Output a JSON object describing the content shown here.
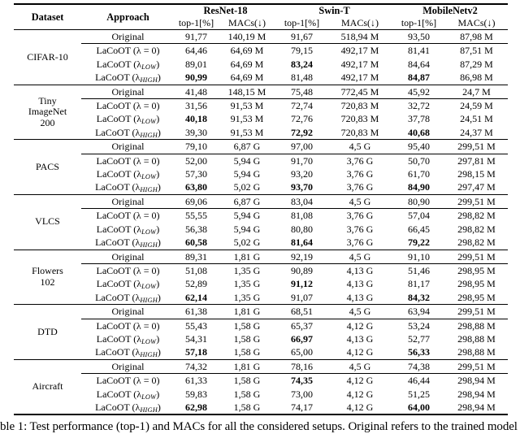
{
  "table": {
    "header": {
      "dataset": "Dataset",
      "approach": "Approach",
      "models": [
        "ResNet-18",
        "Swin-T",
        "MobileNetv2"
      ],
      "metric_top1": "top-1[%]",
      "metric_macs": "MACs(↓)"
    },
    "groups": [
      {
        "dataset_lines": [
          "CIFAR-10"
        ],
        "rows": [
          {
            "approach": {
              "label": "Original",
              "sub": "",
              "end": ""
            },
            "values": [
              {
                "v": "91,77"
              },
              {
                "v": "140,19 M"
              },
              {
                "v": "91,67"
              },
              {
                "v": "518,94 M"
              },
              {
                "v": "93,50"
              },
              {
                "v": "87,98 M"
              }
            ]
          },
          {
            "approach": {
              "label": "LaCoOT (λ = 0)",
              "sub": "",
              "end": ""
            },
            "values": [
              {
                "v": "64,46"
              },
              {
                "v": "64,69 M"
              },
              {
                "v": "79,15"
              },
              {
                "v": "492,17 M"
              },
              {
                "v": "81,41"
              },
              {
                "v": "87,51 M"
              }
            ]
          },
          {
            "approach": {
              "label": "LaCoOT (λ",
              "sub": "LOW",
              "end": ")"
            },
            "values": [
              {
                "v": "89,01"
              },
              {
                "v": "64,69 M"
              },
              {
                "v": "83,24",
                "b": true
              },
              {
                "v": "492,17 M"
              },
              {
                "v": "84,64"
              },
              {
                "v": "87,29 M"
              }
            ]
          },
          {
            "approach": {
              "label": "LaCoOT (λ",
              "sub": "HIGH",
              "end": ")"
            },
            "values": [
              {
                "v": "90,99",
                "b": true
              },
              {
                "v": "64,69 M"
              },
              {
                "v": "81,48"
              },
              {
                "v": "492,17 M"
              },
              {
                "v": "84,87",
                "b": true
              },
              {
                "v": "86,98 M"
              }
            ]
          }
        ]
      },
      {
        "dataset_lines": [
          "Tiny",
          "ImageNet",
          "200"
        ],
        "rows": [
          {
            "approach": {
              "label": "Original",
              "sub": "",
              "end": ""
            },
            "values": [
              {
                "v": "41,48"
              },
              {
                "v": "148,15 M"
              },
              {
                "v": "75,48"
              },
              {
                "v": "772,45 M"
              },
              {
                "v": "45,92"
              },
              {
                "v": "24,7 M"
              }
            ]
          },
          {
            "approach": {
              "label": "LaCoOT (λ = 0)",
              "sub": "",
              "end": ""
            },
            "values": [
              {
                "v": "31,56"
              },
              {
                "v": "91,53 M"
              },
              {
                "v": "72,74"
              },
              {
                "v": "720,83 M"
              },
              {
                "v": "32,72"
              },
              {
                "v": "24,59 M"
              }
            ]
          },
          {
            "approach": {
              "label": "LaCoOT (λ",
              "sub": "LOW",
              "end": ")"
            },
            "values": [
              {
                "v": "40,18",
                "b": true
              },
              {
                "v": "91,53 M"
              },
              {
                "v": "72,76"
              },
              {
                "v": "720,83 M"
              },
              {
                "v": "37,78"
              },
              {
                "v": "24,51 M"
              }
            ]
          },
          {
            "approach": {
              "label": "LaCoOT (λ",
              "sub": "HIGH",
              "end": ")"
            },
            "values": [
              {
                "v": "39,30"
              },
              {
                "v": "91,53 M"
              },
              {
                "v": "72,92",
                "b": true
              },
              {
                "v": "720,83 M"
              },
              {
                "v": "40,68",
                "b": true
              },
              {
                "v": "24,37 M"
              }
            ]
          }
        ]
      },
      {
        "dataset_lines": [
          "PACS"
        ],
        "rows": [
          {
            "approach": {
              "label": "Original",
              "sub": "",
              "end": ""
            },
            "values": [
              {
                "v": "79,10"
              },
              {
                "v": "6,87 G"
              },
              {
                "v": "97,00"
              },
              {
                "v": "4,5 G"
              },
              {
                "v": "95,40"
              },
              {
                "v": "299,51 M"
              }
            ]
          },
          {
            "approach": {
              "label": "LaCoOT (λ = 0)",
              "sub": "",
              "end": ""
            },
            "values": [
              {
                "v": "52,00"
              },
              {
                "v": "5,94 G"
              },
              {
                "v": "91,70"
              },
              {
                "v": "3,76 G"
              },
              {
                "v": "50,70"
              },
              {
                "v": "297,81 M"
              }
            ]
          },
          {
            "approach": {
              "label": "LaCoOT (λ",
              "sub": "LOW",
              "end": ")"
            },
            "values": [
              {
                "v": "57,30"
              },
              {
                "v": "5,94 G"
              },
              {
                "v": "93,20"
              },
              {
                "v": "3,76 G"
              },
              {
                "v": "61,70"
              },
              {
                "v": "298,15 M"
              }
            ]
          },
          {
            "approach": {
              "label": "LaCoOT (λ",
              "sub": "HIGH",
              "end": ")"
            },
            "values": [
              {
                "v": "63,80",
                "b": true
              },
              {
                "v": "5,02 G"
              },
              {
                "v": "93,70",
                "b": true
              },
              {
                "v": "3,76 G"
              },
              {
                "v": "84,90",
                "b": true
              },
              {
                "v": "297,47 M"
              }
            ]
          }
        ]
      },
      {
        "dataset_lines": [
          "VLCS"
        ],
        "rows": [
          {
            "approach": {
              "label": "Original",
              "sub": "",
              "end": ""
            },
            "values": [
              {
                "v": "69,06"
              },
              {
                "v": "6,87 G"
              },
              {
                "v": "83,04"
              },
              {
                "v": "4,5 G"
              },
              {
                "v": "80,90"
              },
              {
                "v": "299,51 M"
              }
            ]
          },
          {
            "approach": {
              "label": "LaCoOT (λ = 0)",
              "sub": "",
              "end": ""
            },
            "values": [
              {
                "v": "55,55"
              },
              {
                "v": "5,94 G"
              },
              {
                "v": "81,08"
              },
              {
                "v": "3,76 G"
              },
              {
                "v": "57,04"
              },
              {
                "v": "298,82 M"
              }
            ]
          },
          {
            "approach": {
              "label": "LaCoOT (λ",
              "sub": "LOW",
              "end": ")"
            },
            "values": [
              {
                "v": "56,38"
              },
              {
                "v": "5,94 G"
              },
              {
                "v": "80,80"
              },
              {
                "v": "3,76 G"
              },
              {
                "v": "66,45"
              },
              {
                "v": "298,82 M"
              }
            ]
          },
          {
            "approach": {
              "label": "LaCoOT (λ",
              "sub": "HIGH",
              "end": ")"
            },
            "values": [
              {
                "v": "60,58",
                "b": true
              },
              {
                "v": "5,02 G"
              },
              {
                "v": "81,64",
                "b": true
              },
              {
                "v": "3,76 G"
              },
              {
                "v": "79,22",
                "b": true
              },
              {
                "v": "298,82 M"
              }
            ]
          }
        ]
      },
      {
        "dataset_lines": [
          "Flowers",
          "102"
        ],
        "rows": [
          {
            "approach": {
              "label": "Original",
              "sub": "",
              "end": ""
            },
            "values": [
              {
                "v": "89,31"
              },
              {
                "v": "1,81 G"
              },
              {
                "v": "92,19"
              },
              {
                "v": "4,5 G"
              },
              {
                "v": "91,10"
              },
              {
                "v": "299,51 M"
              }
            ]
          },
          {
            "approach": {
              "label": "LaCoOT (λ = 0)",
              "sub": "",
              "end": ""
            },
            "values": [
              {
                "v": "51,08"
              },
              {
                "v": "1,35 G"
              },
              {
                "v": "90,89"
              },
              {
                "v": "4,13 G"
              },
              {
                "v": "51,46"
              },
              {
                "v": "298,95 M"
              }
            ]
          },
          {
            "approach": {
              "label": "LaCoOT (λ",
              "sub": "LOW",
              "end": ")"
            },
            "values": [
              {
                "v": "52,89"
              },
              {
                "v": "1,35 G"
              },
              {
                "v": "91,12",
                "b": true
              },
              {
                "v": "4,13 G"
              },
              {
                "v": "81,17"
              },
              {
                "v": "298,95 M"
              }
            ]
          },
          {
            "approach": {
              "label": "LaCoOT (λ",
              "sub": "HIGH",
              "end": ")"
            },
            "values": [
              {
                "v": "62,14",
                "b": true
              },
              {
                "v": "1,35 G"
              },
              {
                "v": "91,07"
              },
              {
                "v": "4,13 G"
              },
              {
                "v": "84,32",
                "b": true
              },
              {
                "v": "298,95 M"
              }
            ]
          }
        ]
      },
      {
        "dataset_lines": [
          "DTD"
        ],
        "rows": [
          {
            "approach": {
              "label": "Original",
              "sub": "",
              "end": ""
            },
            "values": [
              {
                "v": "61,38"
              },
              {
                "v": "1,81 G"
              },
              {
                "v": "68,51"
              },
              {
                "v": "4,5 G"
              },
              {
                "v": "63,94"
              },
              {
                "v": "299,51 M"
              }
            ]
          },
          {
            "approach": {
              "label": "LaCoOT (λ = 0)",
              "sub": "",
              "end": ""
            },
            "values": [
              {
                "v": "55,43"
              },
              {
                "v": "1,58 G"
              },
              {
                "v": "65,37"
              },
              {
                "v": "4,12 G"
              },
              {
                "v": "53,24"
              },
              {
                "v": "298,88 M"
              }
            ]
          },
          {
            "approach": {
              "label": "LaCoOT (λ",
              "sub": "LOW",
              "end": ")"
            },
            "values": [
              {
                "v": "54,31"
              },
              {
                "v": "1,58 G"
              },
              {
                "v": "66,97",
                "b": true
              },
              {
                "v": "4,13 G"
              },
              {
                "v": "52,77"
              },
              {
                "v": "298,88 M"
              }
            ]
          },
          {
            "approach": {
              "label": "LaCoOT (λ",
              "sub": "HIGH",
              "end": ")"
            },
            "values": [
              {
                "v": "57,18",
                "b": true
              },
              {
                "v": "1,58 G"
              },
              {
                "v": "65,00"
              },
              {
                "v": "4,12 G"
              },
              {
                "v": "56,33",
                "b": true
              },
              {
                "v": "298,88 M"
              }
            ]
          }
        ]
      },
      {
        "dataset_lines": [
          "Aircraft"
        ],
        "rows": [
          {
            "approach": {
              "label": "Original",
              "sub": "",
              "end": ""
            },
            "values": [
              {
                "v": "74,32"
              },
              {
                "v": "1,81 G"
              },
              {
                "v": "78,16"
              },
              {
                "v": "4,5 G"
              },
              {
                "v": "74,38"
              },
              {
                "v": "299,51 M"
              }
            ]
          },
          {
            "approach": {
              "label": "LaCoOT (λ = 0)",
              "sub": "",
              "end": ""
            },
            "values": [
              {
                "v": "61,33"
              },
              {
                "v": "1,58 G"
              },
              {
                "v": "74,35",
                "b": true
              },
              {
                "v": "4,12 G"
              },
              {
                "v": "46,44"
              },
              {
                "v": "298,94 M"
              }
            ]
          },
          {
            "approach": {
              "label": "LaCoOT (λ",
              "sub": "LOW",
              "end": ")"
            },
            "values": [
              {
                "v": "59,83"
              },
              {
                "v": "1,58 G"
              },
              {
                "v": "73,00"
              },
              {
                "v": "4,12 G"
              },
              {
                "v": "51,25"
              },
              {
                "v": "298,94 M"
              }
            ]
          },
          {
            "approach": {
              "label": "LaCoOT (λ",
              "sub": "HIGH",
              "end": ")"
            },
            "values": [
              {
                "v": "62,98",
                "b": true
              },
              {
                "v": "1,58 G"
              },
              {
                "v": "74,17"
              },
              {
                "v": "4,12 G"
              },
              {
                "v": "64,00",
                "b": true
              },
              {
                "v": "298,94 M"
              }
            ]
          }
        ]
      }
    ]
  },
  "page": {
    "caption": "ble 1: Test performance (top-1) and MACs for all the considered setups. Original refers to the trained model with"
  }
}
